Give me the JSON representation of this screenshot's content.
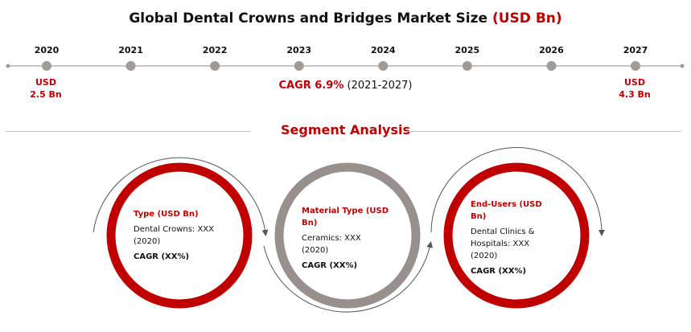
{
  "title": {
    "main": "Global Dental Crowns and Bridges Market Size",
    "unit": "(USD Bn)"
  },
  "timeline": {
    "years": [
      "2020",
      "2021",
      "2022",
      "2023",
      "2024",
      "2025",
      "2026",
      "2027"
    ],
    "start_value": {
      "line1": "USD",
      "line2": "2.5 Bn"
    },
    "end_value": {
      "line1": "USD",
      "line2": "4.3 Bn"
    },
    "cagr_label": "CAGR 6.9%",
    "cagr_period": "(2021-2027)"
  },
  "segment_analysis": {
    "title": "Segment Analysis",
    "segments": [
      {
        "heading": "Type (USD Bn)",
        "body": "Dental Crowns: XXX\n(2020)",
        "cagr": "CAGR (XX%)"
      },
      {
        "heading": "Material Type (USD\nBn)",
        "body": "Ceramics: XXX\n(2020)",
        "cagr": "CAGR (XX%)"
      },
      {
        "heading": "End-Users (USD\nBn)",
        "body": "Dental Clinics &\nHospitals: XXX\n(2020)",
        "cagr": "CAGR (XX%)"
      }
    ]
  },
  "colors": {
    "accent": "#c00000",
    "grey_ring": "#998f8d",
    "timeline_line": "#b3b3b3",
    "timeline_dot": "#a19b98"
  }
}
